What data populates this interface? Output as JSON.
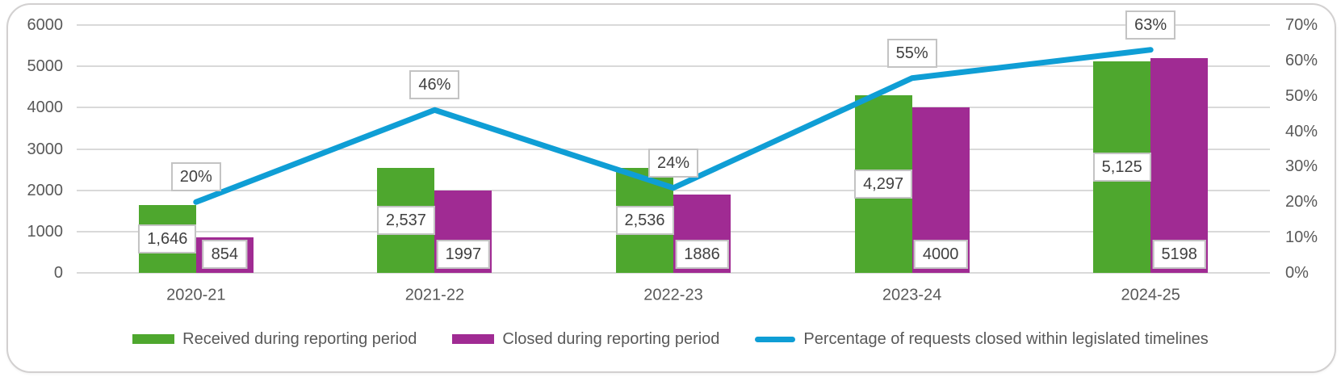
{
  "chart_data": {
    "type": "bar",
    "title": "",
    "categories": [
      "2020-21",
      "2021-22",
      "2022-23",
      "2023-24",
      "2024-25"
    ],
    "series": [
      {
        "name": "Received during reporting period",
        "chart_type": "bar",
        "axis": "left",
        "color": "#4ea72e",
        "values": [
          1646,
          2537,
          2536,
          4297,
          5125
        ],
        "data_labels": [
          "1,646",
          "2,537",
          "2,536",
          "4,297",
          "5,125"
        ]
      },
      {
        "name": "Closed during reporting period",
        "chart_type": "bar",
        "axis": "left",
        "color": "#a02b93",
        "values": [
          854,
          1997,
          1886,
          4000,
          5198
        ],
        "data_labels": [
          "854",
          "1997",
          "1886",
          "4000",
          "5198"
        ]
      },
      {
        "name": "Percentage of requests closed within legislated timelines",
        "chart_type": "line",
        "axis": "right",
        "color": "#0f9ed5",
        "values": [
          20,
          46,
          24,
          55,
          63
        ],
        "data_labels": [
          "20%",
          "46%",
          "24%",
          "55%",
          "63%"
        ]
      }
    ],
    "left_axis": {
      "min": 0,
      "max": 6000,
      "step": 1000,
      "tick_labels": [
        "0",
        "1000",
        "2000",
        "3000",
        "4000",
        "5000",
        "6000"
      ]
    },
    "right_axis": {
      "min": 0,
      "max": 70,
      "step": 10,
      "tick_labels": [
        "0%",
        "10%",
        "20%",
        "30%",
        "40%",
        "50%",
        "60%",
        "70%"
      ]
    },
    "grid": true,
    "legend_position": "bottom",
    "colors": {
      "grid": "#d9d9d9",
      "axis_text": "#595959",
      "label_text": "#404040",
      "label_box_border": "#c3c3c3",
      "card_border": "#d2d0d0",
      "background": "#ffffff"
    }
  }
}
